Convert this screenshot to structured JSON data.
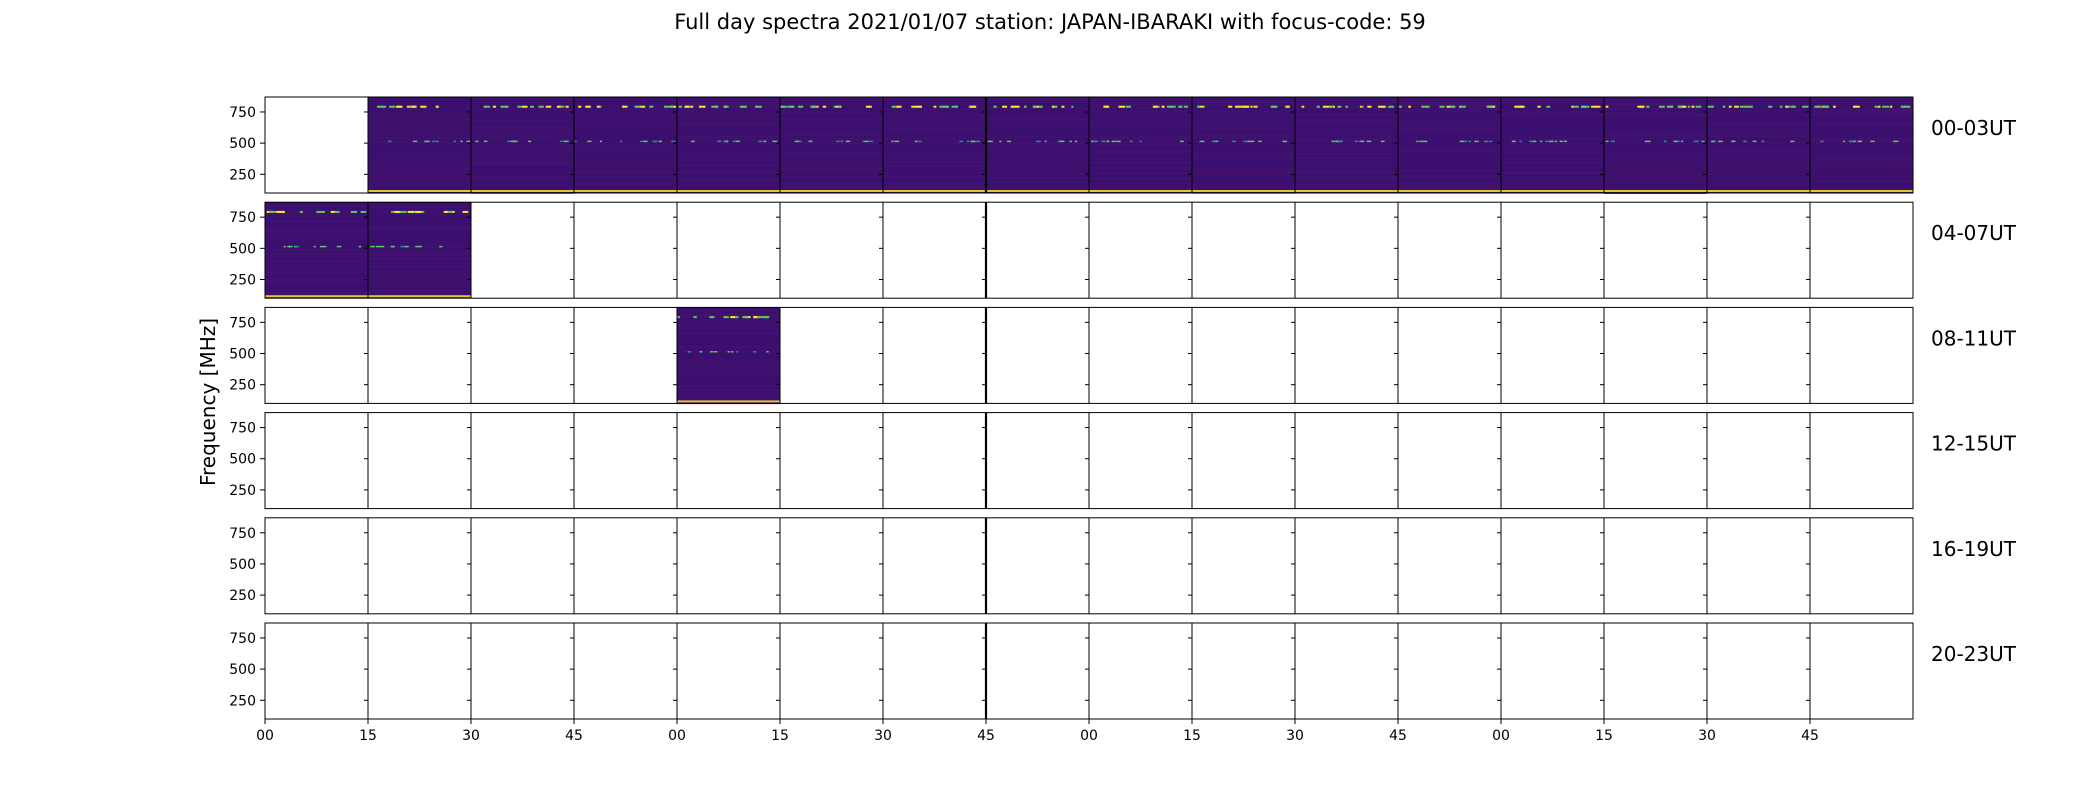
{
  "title": "Full day spectra 2021/01/07 station: JAPAN-IBARAKI with focus-code: 59",
  "chart_data": {
    "type": "heatmap",
    "title": "Full day spectra 2021/01/07 station: JAPAN-IBARAKI with focus-code: 59",
    "ylabel": "Frequency [MHz]",
    "xlabel": "",
    "ylim": [
      100,
      870
    ],
    "yticks": [
      250,
      500,
      750
    ],
    "xticks": [
      "00",
      "15",
      "30",
      "45",
      "00",
      "15",
      "30",
      "45",
      "00",
      "15",
      "30",
      "45",
      "00",
      "15",
      "30",
      "45"
    ],
    "rows": [
      {
        "label": "00-03UT",
        "filled": [
          false,
          true,
          true,
          true,
          true,
          true,
          true,
          true,
          true,
          true,
          true,
          true,
          true,
          true,
          true,
          true
        ]
      },
      {
        "label": "04-07UT",
        "filled": [
          true,
          true,
          false,
          false,
          false,
          false,
          false,
          false,
          false,
          false,
          false,
          false,
          false,
          false,
          false,
          false
        ]
      },
      {
        "label": "08-11UT",
        "filled": [
          false,
          false,
          false,
          false,
          true,
          false,
          false,
          false,
          false,
          false,
          false,
          false,
          false,
          false,
          false,
          false
        ]
      },
      {
        "label": "12-15UT",
        "filled": [
          false,
          false,
          false,
          false,
          false,
          false,
          false,
          false,
          false,
          false,
          false,
          false,
          false,
          false,
          false,
          false
        ]
      },
      {
        "label": "16-19UT",
        "filled": [
          false,
          false,
          false,
          false,
          false,
          false,
          false,
          false,
          false,
          false,
          false,
          false,
          false,
          false,
          false,
          false
        ]
      },
      {
        "label": "20-23UT",
        "filled": [
          false,
          false,
          false,
          false,
          false,
          false,
          false,
          false,
          false,
          false,
          false,
          false,
          false,
          false,
          false,
          false
        ]
      }
    ],
    "colormap": {
      "background": "#3b0f70",
      "noise": "#44146e",
      "rfi_bright": "#fde725",
      "rfi_mid": "#21918c",
      "rfi_dim": "#5ec962"
    },
    "grid": false
  }
}
